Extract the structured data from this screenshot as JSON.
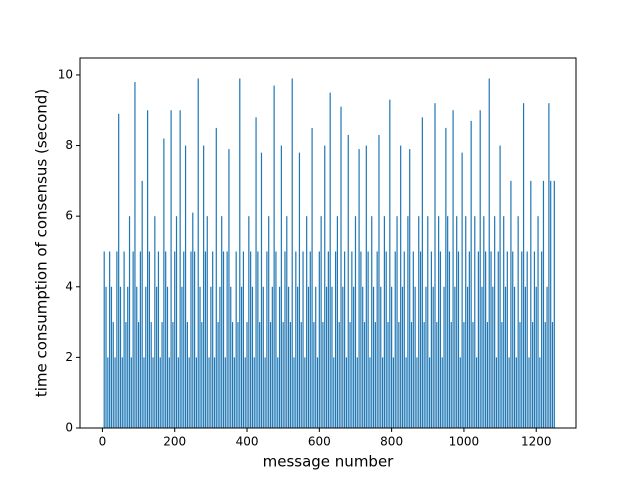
{
  "chart_data": {
    "type": "bar",
    "xlabel": "message number",
    "ylabel": "time consumption of consensus (second)",
    "color": "#1f77b4",
    "xlim": [
      -62,
      1310
    ],
    "ylim": [
      0,
      10.48
    ],
    "xticks": [
      0,
      200,
      400,
      600,
      800,
      1000,
      1200
    ],
    "yticks": [
      0,
      2,
      4,
      6,
      8,
      10
    ],
    "x": [
      5,
      10,
      15,
      20,
      25,
      30,
      35,
      40,
      45,
      50,
      55,
      60,
      65,
      70,
      75,
      80,
      85,
      90,
      95,
      100,
      105,
      110,
      115,
      120,
      125,
      130,
      135,
      140,
      145,
      150,
      155,
      160,
      165,
      170,
      175,
      180,
      185,
      190,
      195,
      200,
      205,
      210,
      215,
      220,
      225,
      230,
      235,
      240,
      245,
      250,
      255,
      260,
      265,
      270,
      275,
      280,
      285,
      290,
      295,
      300,
      305,
      310,
      315,
      320,
      325,
      330,
      335,
      340,
      345,
      350,
      355,
      360,
      365,
      370,
      375,
      380,
      385,
      390,
      395,
      400,
      405,
      410,
      415,
      420,
      425,
      430,
      435,
      440,
      445,
      450,
      455,
      460,
      465,
      470,
      475,
      480,
      485,
      490,
      495,
      500,
      505,
      510,
      515,
      520,
      525,
      530,
      535,
      540,
      545,
      550,
      555,
      560,
      565,
      570,
      575,
      580,
      585,
      590,
      595,
      600,
      605,
      610,
      615,
      620,
      625,
      630,
      635,
      640,
      645,
      650,
      655,
      660,
      665,
      670,
      675,
      680,
      685,
      690,
      695,
      700,
      705,
      710,
      715,
      720,
      725,
      730,
      735,
      740,
      745,
      750,
      755,
      760,
      765,
      770,
      775,
      780,
      785,
      790,
      795,
      800,
      805,
      810,
      815,
      820,
      825,
      830,
      835,
      840,
      845,
      850,
      855,
      860,
      865,
      870,
      875,
      880,
      885,
      890,
      895,
      900,
      905,
      910,
      915,
      920,
      925,
      930,
      935,
      940,
      945,
      950,
      955,
      960,
      965,
      970,
      975,
      980,
      985,
      990,
      995,
      1000,
      1005,
      1010,
      1015,
      1020,
      1025,
      1030,
      1035,
      1040,
      1045,
      1050,
      1055,
      1060,
      1065,
      1070,
      1075,
      1080,
      1085,
      1090,
      1095,
      1100,
      1105,
      1110,
      1115,
      1120,
      1125,
      1130,
      1135,
      1140,
      1145,
      1150,
      1155,
      1160,
      1165,
      1170,
      1175,
      1180,
      1185,
      1190,
      1195,
      1200,
      1205,
      1210,
      1215,
      1220,
      1225,
      1230,
      1235,
      1240,
      1245,
      1250
    ],
    "values": [
      5,
      4,
      2,
      5,
      4,
      3,
      2,
      5,
      8.9,
      4,
      2,
      5,
      3,
      4,
      6,
      2,
      5,
      9.8,
      4,
      3,
      5,
      7,
      2,
      4,
      9,
      5,
      3,
      2,
      6,
      4,
      5,
      2,
      3,
      8.2,
      5,
      4,
      2,
      9,
      3,
      5,
      6,
      2,
      9,
      4,
      5,
      8,
      3,
      2,
      5,
      6.1,
      5,
      2,
      9.9,
      4,
      3,
      8,
      5,
      6,
      2,
      4,
      5,
      2,
      8.5,
      3,
      4,
      6,
      5,
      2,
      5,
      7.9,
      4,
      3,
      2,
      5,
      3,
      9.9,
      4,
      5,
      2,
      3,
      6,
      5,
      4,
      2,
      8.8,
      5,
      3,
      7.8,
      4,
      2,
      5,
      6,
      3,
      4,
      9.7,
      5,
      2,
      4,
      8,
      3,
      5,
      6,
      4,
      3,
      9.9,
      2,
      5,
      4,
      7.8,
      3,
      5,
      2,
      6,
      4,
      5,
      8.5,
      3,
      4,
      2,
      5,
      6,
      3,
      8,
      4,
      5,
      9.5,
      4,
      2,
      5,
      6,
      3,
      9.1,
      4,
      5,
      2,
      8.3,
      3,
      5,
      4,
      6,
      2,
      7.9,
      5,
      4,
      3,
      8,
      5,
      2,
      6,
      4,
      3,
      5,
      8.3,
      4,
      2,
      6,
      5,
      3,
      9.3,
      4,
      2,
      5,
      6,
      3,
      8,
      4,
      5,
      2,
      6,
      7.9,
      3,
      5,
      4,
      2,
      6,
      5,
      8.8,
      3,
      4,
      6,
      2,
      5,
      4,
      9.2,
      3,
      6,
      5,
      2,
      4,
      8.5,
      6,
      5,
      3,
      9,
      4,
      6,
      5,
      2,
      7.8,
      3,
      6,
      4,
      5,
      8.7,
      3,
      6,
      2,
      5,
      9,
      4,
      6,
      5,
      3,
      9.9,
      5,
      4,
      6,
      2,
      5,
      8,
      3,
      6,
      4,
      5,
      2,
      7,
      5,
      4,
      2,
      6,
      3,
      5,
      9.2,
      4,
      5,
      2,
      7,
      3,
      5,
      4,
      6,
      2,
      5,
      7,
      3,
      4,
      9.2,
      7,
      3,
      7
    ]
  }
}
